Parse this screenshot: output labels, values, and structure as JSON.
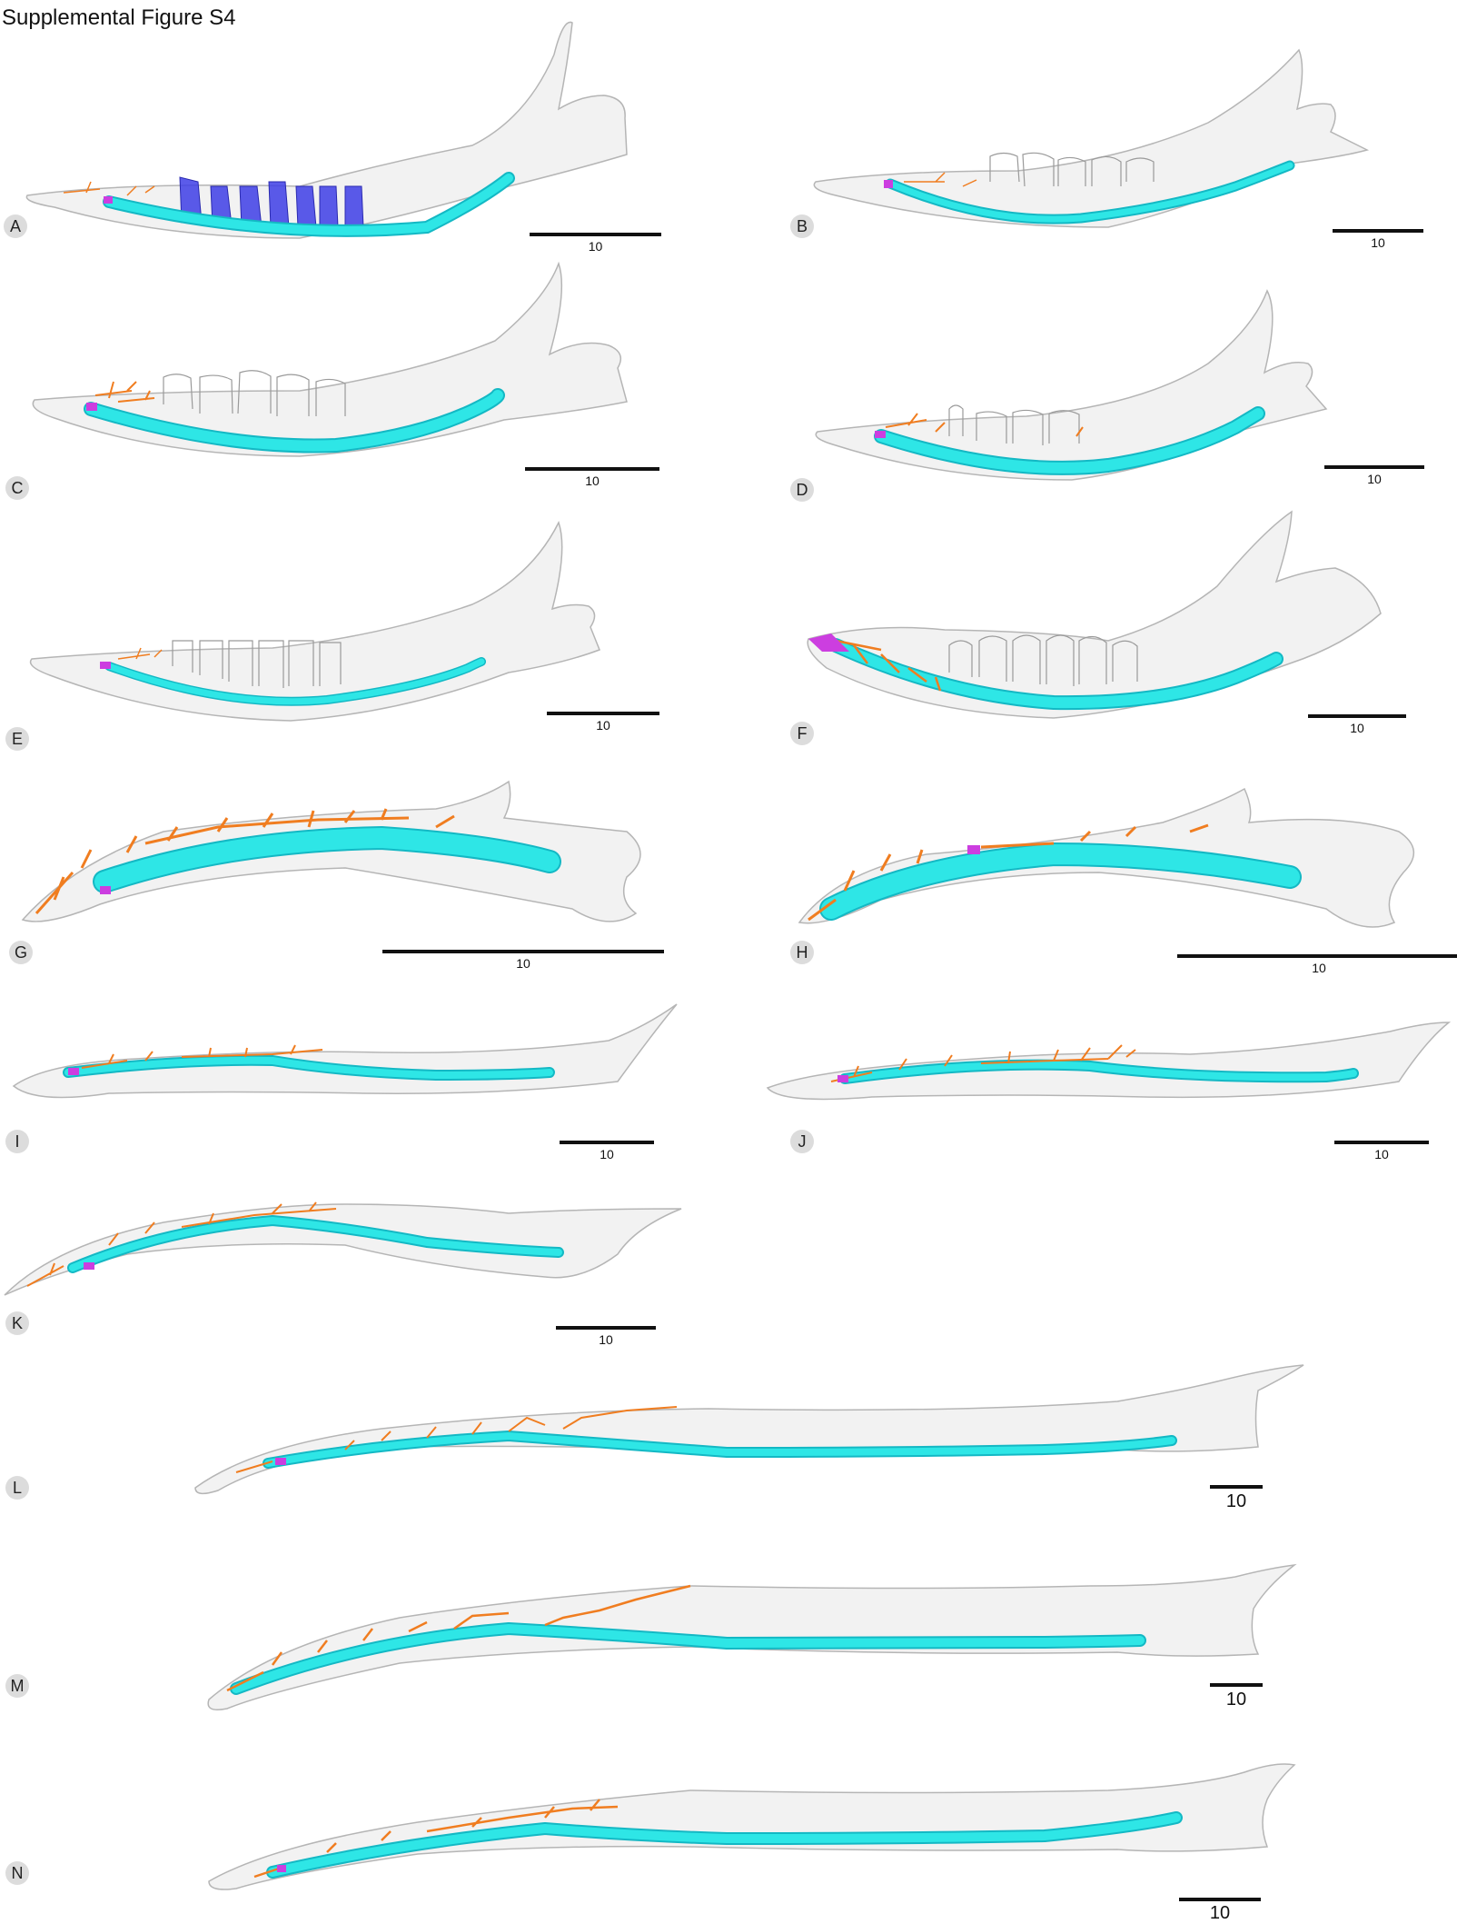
{
  "figure": {
    "title": "Supplemental Figure S4"
  },
  "panels": [
    {
      "label": "A",
      "scale": "10"
    },
    {
      "label": "B",
      "scale": "10"
    },
    {
      "label": "C",
      "scale": "10"
    },
    {
      "label": "D",
      "scale": "10"
    },
    {
      "label": "E",
      "scale": "10"
    },
    {
      "label": "F",
      "scale": "10"
    },
    {
      "label": "G",
      "scale": "10"
    },
    {
      "label": "H",
      "scale": "10"
    },
    {
      "label": "I",
      "scale": "10"
    },
    {
      "label": "J",
      "scale": "10"
    },
    {
      "label": "K",
      "scale": "10"
    },
    {
      "label": "L",
      "scale": "10"
    },
    {
      "label": "M",
      "scale": "10"
    },
    {
      "label": "N",
      "scale": "10"
    }
  ],
  "colors": {
    "canal": "#2ee6e6",
    "canal_edge": "#14b8c4",
    "branches": "#f07d20",
    "foramen": "#cc3ee0",
    "teeth_highlight": "#3e3ee6",
    "bone": "#f2f2f2",
    "bone_edge": "#b5b5b5"
  }
}
